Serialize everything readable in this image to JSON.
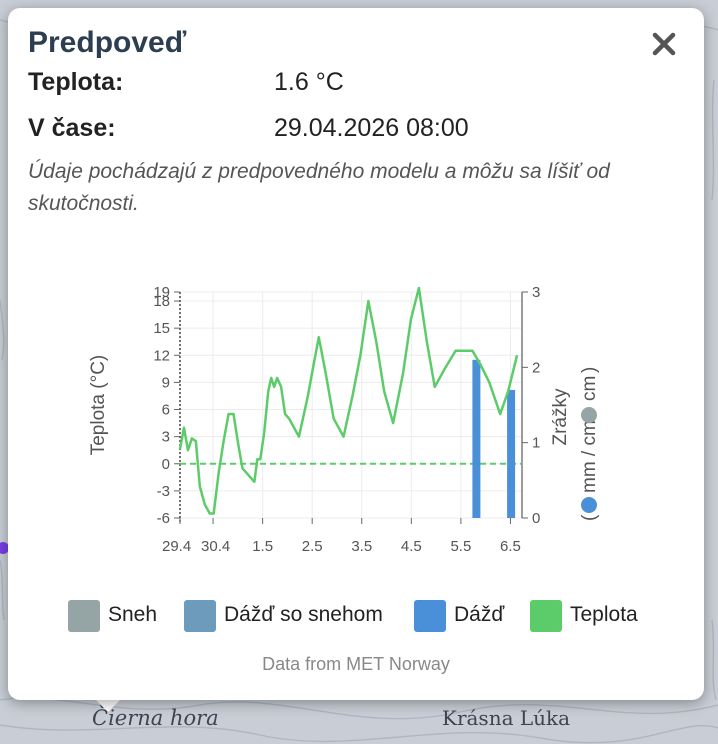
{
  "map": {
    "labels": [
      "Čierna hora",
      "Krásna Lúka"
    ]
  },
  "popup": {
    "title": "Predpoveď",
    "close_icon": "close-icon",
    "temperature_label": "Teplota:",
    "temperature_value": "1.6 °C",
    "time_label": "V čase:",
    "time_value": "29.04.2026 08:00",
    "note": "Údaje pochádzajú z predpovedného modelu a môžu sa líšiť od skutočnosti.",
    "source": "Data from MET Norway"
  },
  "colors": {
    "snow": "#95a5a6",
    "sleet": "#6c9bbc",
    "rain": "#4a90d9",
    "temperature": "#5ccc6a"
  },
  "chart_data": {
    "type": "line",
    "ylabel": "Teplota (°C)",
    "y2label_text": "Zrážky",
    "y2label_units": "mm /  cm",
    "x_ticks": [
      "29.4",
      "30.4",
      "1.5",
      "2.5",
      "3.5",
      "4.5",
      "5.5",
      "6.5"
    ],
    "x_tick_days": [
      0,
      0.667,
      1.667,
      2.667,
      3.667,
      4.667,
      5.667,
      6.667
    ],
    "x_range": [
      0,
      6.9
    ],
    "y_ticks": [
      -6,
      -3,
      0,
      3,
      6,
      9,
      12,
      15,
      18,
      19
    ],
    "ylim": [
      -6,
      19
    ],
    "y2_ticks": [
      0,
      1,
      2,
      3
    ],
    "y2lim": [
      0,
      3
    ],
    "series": [
      {
        "name": "Teplota",
        "type": "line",
        "x": [
          0,
          0.08,
          0.16,
          0.24,
          0.32,
          0.4,
          0.5,
          0.6,
          0.68,
          0.78,
          0.88,
          0.98,
          1.08,
          1.18,
          1.26,
          1.34,
          1.42,
          1.5,
          1.56,
          1.62,
          1.7,
          1.78,
          1.84,
          1.9,
          1.96,
          2.04,
          2.12,
          2.2,
          2.4,
          2.58,
          2.68,
          2.8,
          2.94,
          3.1,
          3.3,
          3.48,
          3.64,
          3.8,
          3.96,
          4.12,
          4.3,
          4.5,
          4.66,
          4.82,
          4.98,
          5.14,
          5.34,
          5.56,
          5.76,
          5.9,
          6.06,
          6.24,
          6.46,
          6.62,
          6.8
        ],
        "values": [
          1.6,
          4,
          1.5,
          2.8,
          2.5,
          -2.5,
          -4.5,
          -5.5,
          -5.5,
          -1,
          2.5,
          5.5,
          5.5,
          2,
          -0.5,
          -1,
          -1.5,
          -2,
          0.5,
          0.5,
          3.5,
          8,
          9.5,
          8.5,
          9.5,
          8.5,
          5.5,
          5,
          3,
          7.5,
          10.5,
          14,
          10,
          5,
          3,
          7.5,
          12,
          18,
          13.5,
          8,
          4.5,
          10,
          16,
          20,
          13.5,
          8.5,
          10.5,
          12.5,
          12.5,
          12.5,
          11,
          9,
          5.5,
          8,
          12
        ]
      },
      {
        "name": "Dážď",
        "type": "bar",
        "x": [
          5.98,
          6.68
        ],
        "values": [
          2.1,
          1.7
        ]
      }
    ],
    "zero_line": true,
    "grid": true,
    "legend": [
      {
        "name": "Sneh",
        "color": "#95a5a6"
      },
      {
        "name": "Dážď so snehom",
        "color": "#6c9bbc"
      },
      {
        "name": "Dážď",
        "color": "#4a90d9"
      },
      {
        "name": "Teplota",
        "color": "#5ccc6a"
      }
    ],
    "legend_position": "bottom"
  }
}
